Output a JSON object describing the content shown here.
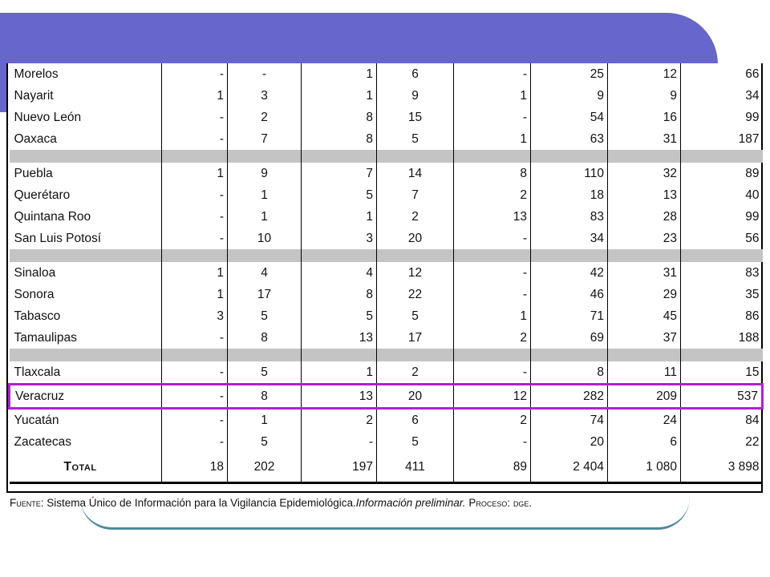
{
  "table": {
    "rows": [
      {
        "name": "Morelos",
        "v": [
          "-",
          "-",
          "1",
          "6",
          "-",
          "25",
          "12",
          "66"
        ]
      },
      {
        "name": "Nayarit",
        "v": [
          "1",
          "3",
          "1",
          "9",
          "1",
          "9",
          "9",
          "34"
        ]
      },
      {
        "name": "Nuevo León",
        "v": [
          "-",
          "2",
          "8",
          "15",
          "-",
          "54",
          "16",
          "99"
        ]
      },
      {
        "name": "Oaxaca",
        "v": [
          "-",
          "7",
          "8",
          "5",
          "1",
          "63",
          "31",
          "187"
        ]
      },
      {
        "sep": true
      },
      {
        "name": "Puebla",
        "v": [
          "1",
          "9",
          "7",
          "14",
          "8",
          "110",
          "32",
          "89"
        ]
      },
      {
        "name": "Querétaro",
        "v": [
          "-",
          "1",
          "5",
          "7",
          "2",
          "18",
          "13",
          "40"
        ]
      },
      {
        "name": "Quintana Roo",
        "v": [
          "-",
          "1",
          "1",
          "2",
          "13",
          "83",
          "28",
          "99"
        ]
      },
      {
        "name": "San Luis Potosí",
        "v": [
          "-",
          "10",
          "3",
          "20",
          "-",
          "34",
          "23",
          "56"
        ]
      },
      {
        "sep": true
      },
      {
        "name": "Sinaloa",
        "v": [
          "1",
          "4",
          "4",
          "12",
          "-",
          "42",
          "31",
          "83"
        ]
      },
      {
        "name": "Sonora",
        "v": [
          "1",
          "17",
          "8",
          "22",
          "-",
          "46",
          "29",
          "35"
        ]
      },
      {
        "name": "Tabasco",
        "v": [
          "3",
          "5",
          "5",
          "5",
          "1",
          "71",
          "45",
          "86"
        ]
      },
      {
        "name": "Tamaulipas",
        "v": [
          "-",
          "8",
          "13",
          "17",
          "2",
          "69",
          "37",
          "188"
        ]
      },
      {
        "sep": true
      },
      {
        "name": "Tlaxcala",
        "v": [
          "-",
          "5",
          "1",
          "2",
          "-",
          "8",
          "11",
          "15"
        ]
      },
      {
        "name": "Veracruz",
        "v": [
          "-",
          "8",
          "13",
          "20",
          "12",
          "282",
          "209",
          "537"
        ],
        "highlight": true
      },
      {
        "name": "Yucatán",
        "v": [
          "-",
          "1",
          "2",
          "6",
          "2",
          "74",
          "24",
          "84"
        ]
      },
      {
        "name": "Zacatecas",
        "v": [
          "-",
          "5",
          "-",
          "5",
          "-",
          "20",
          "6",
          "22"
        ]
      }
    ],
    "total": {
      "name": "Total",
      "v": [
        "18",
        "202",
        "197",
        "411",
        "89",
        "2 404",
        "1 080",
        "3 898"
      ]
    }
  },
  "footer": {
    "source_label": "Fuente:",
    "source_text": "Sistema Único de Información para la Vigilancia Epidemiológica.",
    "note": "Información preliminar.",
    "process_label": "Proceso:",
    "process_value": "dge."
  },
  "colors": {
    "banner": "#6666cc",
    "highlight": "#b020d0",
    "separator": "#c4c4c4"
  }
}
